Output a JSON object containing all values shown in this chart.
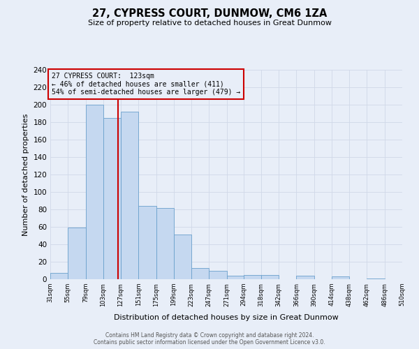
{
  "title": "27, CYPRESS COURT, DUNMOW, CM6 1ZA",
  "subtitle": "Size of property relative to detached houses in Great Dunmow",
  "xlabel": "Distribution of detached houses by size in Great Dunmow",
  "ylabel": "Number of detached properties",
  "bin_edges": [
    31,
    55,
    79,
    103,
    127,
    151,
    175,
    199,
    223,
    247,
    271,
    294,
    318,
    342,
    366,
    390,
    414,
    438,
    462,
    486,
    510
  ],
  "bar_heights": [
    7,
    59,
    200,
    185,
    192,
    84,
    82,
    51,
    13,
    10,
    4,
    5,
    5,
    0,
    4,
    0,
    3,
    0,
    1,
    0
  ],
  "bar_color": "#c5d8f0",
  "bar_edgecolor": "#6aa0cc",
  "property_line_x": 123,
  "property_line_color": "#cc0000",
  "annotation_line1": "27 CYPRESS COURT:  123sqm",
  "annotation_line2": "← 46% of detached houses are smaller (411)",
  "annotation_line3": "54% of semi-detached houses are larger (479) →",
  "annotation_box_color": "#cc0000",
  "ylim": [
    0,
    240
  ],
  "yticks": [
    0,
    20,
    40,
    60,
    80,
    100,
    120,
    140,
    160,
    180,
    200,
    220,
    240
  ],
  "tick_labels": [
    "31sqm",
    "55sqm",
    "79sqm",
    "103sqm",
    "127sqm",
    "151sqm",
    "175sqm",
    "199sqm",
    "223sqm",
    "247sqm",
    "271sqm",
    "294sqm",
    "318sqm",
    "342sqm",
    "366sqm",
    "390sqm",
    "414sqm",
    "438sqm",
    "462sqm",
    "486sqm",
    "510sqm"
  ],
  "grid_color": "#d0d8e8",
  "background_color": "#e8eef8",
  "footer_line1": "Contains HM Land Registry data © Crown copyright and database right 2024.",
  "footer_line2": "Contains public sector information licensed under the Open Government Licence v3.0."
}
